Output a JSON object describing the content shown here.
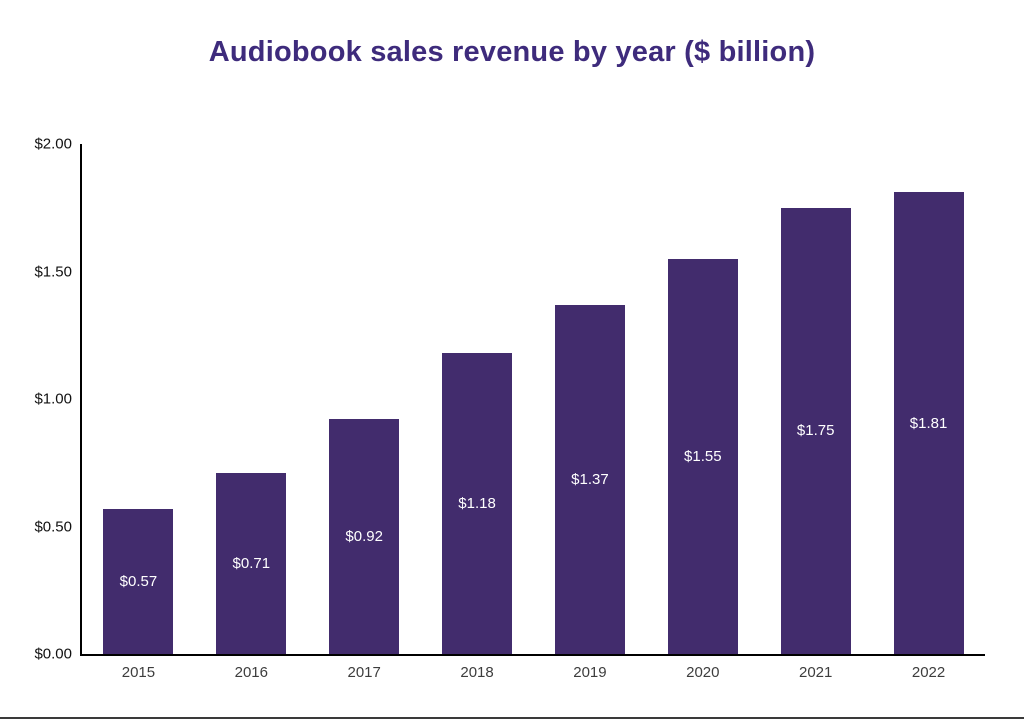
{
  "chart_data": {
    "type": "bar",
    "title": "Audiobook sales revenue by year ($ billion)",
    "categories": [
      "2015",
      "2016",
      "2017",
      "2018",
      "2019",
      "2020",
      "2021",
      "2022"
    ],
    "values": [
      0.57,
      0.71,
      0.92,
      1.18,
      1.37,
      1.55,
      1.75,
      1.81
    ],
    "data_labels": [
      "$0.57",
      "$0.71",
      "$0.92",
      "$1.18",
      "$1.37",
      "$1.55",
      "$1.75",
      "$1.81"
    ],
    "xlabel": "",
    "ylabel": "",
    "ylim": [
      0,
      2
    ],
    "yticks": [
      0,
      0.5,
      1.0,
      1.5,
      2.0
    ],
    "ytick_labels": [
      "$0.00",
      "$0.50",
      "$1.00",
      "$1.50",
      "$2.00"
    ],
    "grid": false,
    "legend": false,
    "colors": {
      "bar": "#422c6d",
      "title": "#3e2b7c",
      "axis": "#000000",
      "bar_label_text": "#ffffff",
      "tick_text": "#111111",
      "bottom_border": "#3a3a3a"
    }
  }
}
